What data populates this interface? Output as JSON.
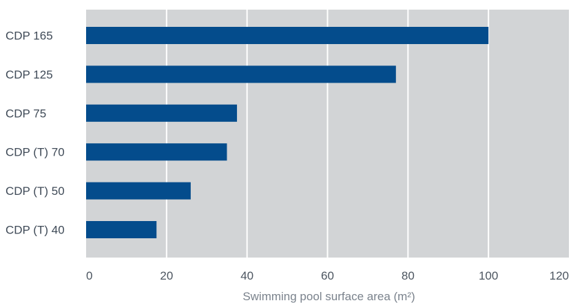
{
  "chart_data": {
    "type": "bar",
    "orientation": "horizontal",
    "categories": [
      "CDP 165",
      "CDP 125",
      "CDP 75",
      "CDP (T) 70",
      "CDP (T) 50",
      "CDP (T) 40"
    ],
    "values": [
      100,
      77,
      37.5,
      35,
      26,
      17.5
    ],
    "xlabel": "Swimming pool surface area (m²)",
    "ylabel": "",
    "xlim": [
      0,
      120
    ],
    "xticks": [
      "0",
      "20",
      "40",
      "60",
      "80",
      "100",
      "120"
    ],
    "grid": "vertical",
    "legend": "none",
    "colors": {
      "bar": "#044c8c",
      "plot_background": "#d2d4d6",
      "gridline": "#ffffff"
    }
  }
}
